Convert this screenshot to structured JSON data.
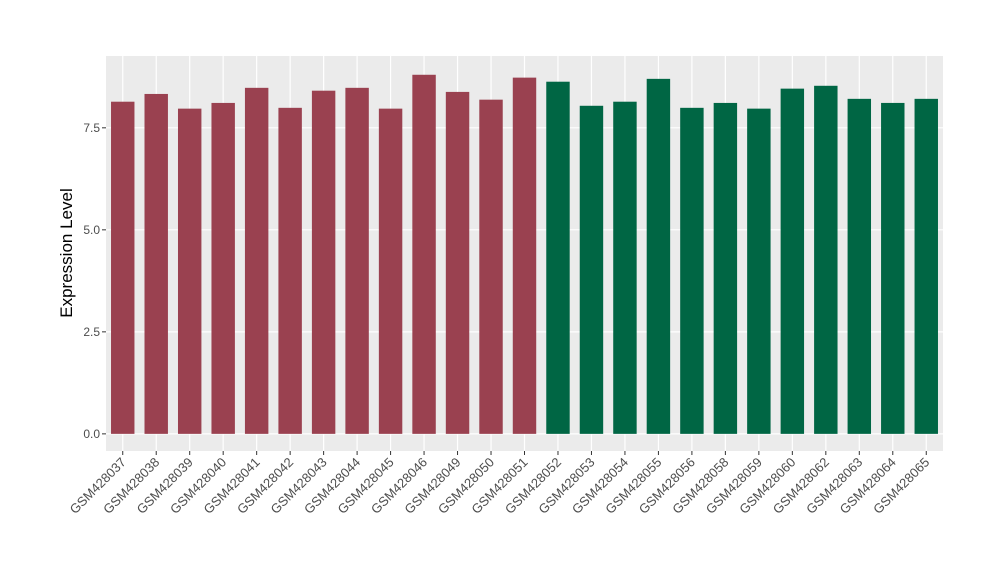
{
  "chart_data": {
    "type": "bar",
    "y_label": "Expression Level",
    "categories": [
      "GSM428037",
      "GSM428038",
      "GSM428039",
      "GSM428040",
      "GSM428041",
      "GSM428042",
      "GSM428043",
      "GSM428044",
      "GSM428045",
      "GSM428046",
      "GSM428049",
      "GSM428050",
      "GSM428051",
      "GSM428052",
      "GSM428053",
      "GSM428054",
      "GSM428055",
      "GSM428056",
      "GSM428058",
      "GSM428059",
      "GSM428060",
      "GSM428062",
      "GSM428063",
      "GSM428064",
      "GSM428065"
    ],
    "values": [
      8.14,
      8.33,
      7.97,
      8.11,
      8.48,
      7.99,
      8.41,
      8.48,
      7.97,
      8.8,
      8.38,
      8.19,
      8.73,
      8.63,
      8.04,
      8.14,
      8.7,
      7.99,
      8.11,
      7.97,
      8.46,
      8.53,
      8.21,
      8.11,
      8.21
    ],
    "colors": [
      "#9a4150",
      "#9a4150",
      "#9a4150",
      "#9a4150",
      "#9a4150",
      "#9a4150",
      "#9a4150",
      "#9a4150",
      "#9a4150",
      "#9a4150",
      "#9a4150",
      "#9a4150",
      "#9a4150",
      "#006644",
      "#006644",
      "#006644",
      "#006644",
      "#006644",
      "#006644",
      "#006644",
      "#006644",
      "#006644",
      "#006644",
      "#006644",
      "#006644"
    ],
    "ylim": [
      -0.42,
      9.26
    ],
    "yticks": [
      {
        "value": 0,
        "label": "0.0"
      },
      2.5,
      {
        "value": 5,
        "label": "5.0"
      },
      7.5
    ],
    "grid": true
  }
}
